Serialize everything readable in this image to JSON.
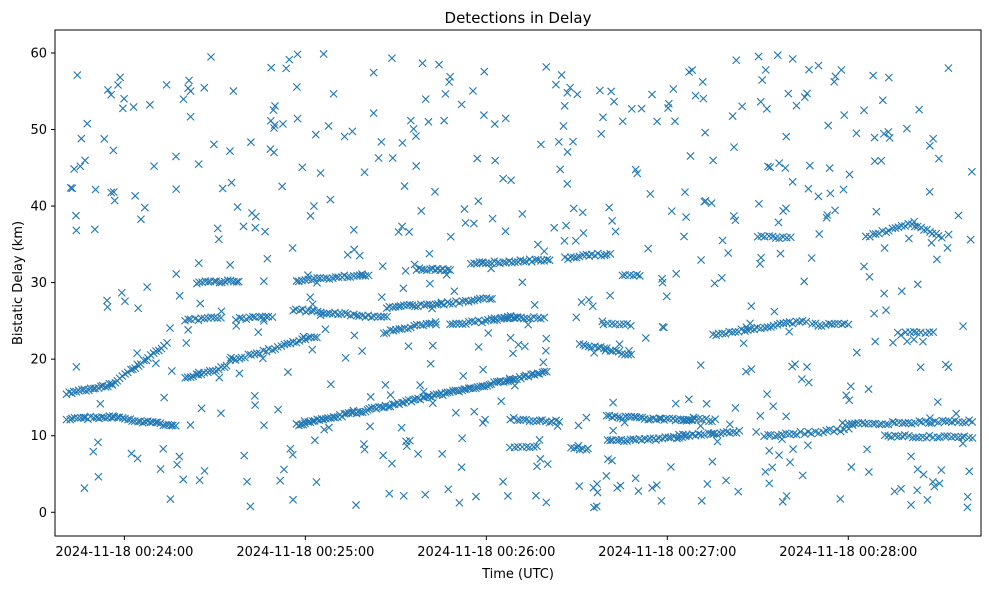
{
  "chart_data": {
    "type": "scatter",
    "title": "Detections in Delay",
    "xlabel": "Time (UTC)",
    "ylabel": "Bistatic Delay (km)",
    "x_unit": "seconds since 2024-11-18 00:23:00",
    "xlim": [
      37,
      344
    ],
    "ylim": [
      -3.1,
      63
    ],
    "xticks": [
      {
        "value": 60,
        "label": "2024-11-18 00:24:00"
      },
      {
        "value": 120,
        "label": "2024-11-18 00:25:00"
      },
      {
        "value": 180,
        "label": "2024-11-18 00:26:00"
      },
      {
        "value": 240,
        "label": "2024-11-18 00:27:00"
      },
      {
        "value": 300,
        "label": "2024-11-18 00:28:00"
      }
    ],
    "yticks": [
      0,
      10,
      20,
      30,
      40,
      50,
      60
    ],
    "marker": "x",
    "color": "#1f77b4",
    "seed": 20241118,
    "tracks": [
      {
        "t_start": 41,
        "t_end": 56,
        "delay_start": 15.5,
        "delay_end": 16.7,
        "n": 20
      },
      {
        "t_start": 56,
        "t_end": 74,
        "delay_start": 16.7,
        "delay_end": 22.0,
        "n": 22
      },
      {
        "t_start": 41,
        "t_end": 56,
        "delay_start": 12.2,
        "delay_end": 12.5,
        "n": 18
      },
      {
        "t_start": 56,
        "t_end": 77,
        "delay_start": 12.4,
        "delay_end": 11.3,
        "n": 26
      },
      {
        "t_start": 80,
        "t_end": 94,
        "delay_start": 17.5,
        "delay_end": 19.0,
        "n": 16
      },
      {
        "t_start": 95,
        "t_end": 124,
        "delay_start": 19.8,
        "delay_end": 23.0,
        "n": 30
      },
      {
        "t_start": 80,
        "t_end": 92,
        "delay_start": 25.0,
        "delay_end": 25.5,
        "n": 12
      },
      {
        "t_start": 84,
        "t_end": 98,
        "delay_start": 30.0,
        "delay_end": 30.2,
        "n": 16
      },
      {
        "t_start": 97,
        "t_end": 109,
        "delay_start": 25.3,
        "delay_end": 25.5,
        "n": 12
      },
      {
        "t_start": 117,
        "t_end": 141,
        "delay_start": 30.3,
        "delay_end": 31.0,
        "n": 25
      },
      {
        "t_start": 116,
        "t_end": 147,
        "delay_start": 26.5,
        "delay_end": 25.4,
        "n": 32
      },
      {
        "t_start": 147,
        "t_end": 165,
        "delay_start": 26.7,
        "delay_end": 27.3,
        "n": 20
      },
      {
        "t_start": 165,
        "t_end": 182,
        "delay_start": 27.2,
        "delay_end": 28.0,
        "n": 18
      },
      {
        "t_start": 146,
        "t_end": 163,
        "delay_start": 23.5,
        "delay_end": 24.8,
        "n": 18
      },
      {
        "t_start": 157,
        "t_end": 168,
        "delay_start": 31.8,
        "delay_end": 31.6,
        "n": 14
      },
      {
        "t_start": 168,
        "t_end": 190,
        "delay_start": 24.5,
        "delay_end": 25.5,
        "n": 22
      },
      {
        "t_start": 175,
        "t_end": 201,
        "delay_start": 32.5,
        "delay_end": 33.0,
        "n": 28
      },
      {
        "t_start": 206,
        "t_end": 221,
        "delay_start": 33.2,
        "delay_end": 33.8,
        "n": 16
      },
      {
        "t_start": 185,
        "t_end": 199,
        "delay_start": 25.5,
        "delay_end": 25.4,
        "n": 14
      },
      {
        "t_start": 211,
        "t_end": 228,
        "delay_start": 22.0,
        "delay_end": 20.6,
        "n": 18
      },
      {
        "t_start": 117,
        "t_end": 200,
        "delay_start": 11.4,
        "delay_end": 18.3,
        "n": 110
      },
      {
        "t_start": 188,
        "t_end": 204,
        "delay_start": 12.2,
        "delay_end": 11.8,
        "n": 16
      },
      {
        "t_start": 188,
        "t_end": 197,
        "delay_start": 8.5,
        "delay_end": 8.5,
        "n": 8
      },
      {
        "t_start": 208,
        "t_end": 213,
        "delay_start": 8.3,
        "delay_end": 8.3,
        "n": 6
      },
      {
        "t_start": 220,
        "t_end": 248,
        "delay_start": 12.5,
        "delay_end": 12.0,
        "n": 32
      },
      {
        "t_start": 220,
        "t_end": 246,
        "delay_start": 9.3,
        "delay_end": 9.8,
        "n": 28
      },
      {
        "t_start": 244,
        "t_end": 264,
        "delay_start": 10.0,
        "delay_end": 10.5,
        "n": 20
      },
      {
        "t_start": 246,
        "t_end": 256,
        "delay_start": 12.2,
        "delay_end": 12.0,
        "n": 10
      },
      {
        "t_start": 225,
        "t_end": 231,
        "delay_start": 31.0,
        "delay_end": 30.9,
        "n": 6
      },
      {
        "t_start": 219,
        "t_end": 228,
        "delay_start": 24.7,
        "delay_end": 24.5,
        "n": 8
      },
      {
        "t_start": 255,
        "t_end": 286,
        "delay_start": 23.2,
        "delay_end": 25.0,
        "n": 30
      },
      {
        "t_start": 270,
        "t_end": 281,
        "delay_start": 36.0,
        "delay_end": 35.8,
        "n": 10
      },
      {
        "t_start": 272,
        "t_end": 300,
        "delay_start": 10.0,
        "delay_end": 10.8,
        "n": 24
      },
      {
        "t_start": 288,
        "t_end": 300,
        "delay_start": 24.5,
        "delay_end": 24.5,
        "n": 12
      },
      {
        "t_start": 298,
        "t_end": 341,
        "delay_start": 11.5,
        "delay_end": 11.9,
        "n": 40
      },
      {
        "t_start": 312,
        "t_end": 341,
        "delay_start": 10.0,
        "delay_end": 9.8,
        "n": 26
      },
      {
        "t_start": 306,
        "t_end": 322,
        "delay_start": 36.0,
        "delay_end": 37.8,
        "n": 16
      },
      {
        "t_start": 322,
        "t_end": 331,
        "delay_start": 37.5,
        "delay_end": 36.0,
        "n": 10
      },
      {
        "t_start": 319,
        "t_end": 328,
        "delay_start": 23.5,
        "delay_end": 23.5,
        "n": 8
      }
    ],
    "clutter": {
      "n": 560,
      "t_range": [
        41,
        341
      ],
      "delay_range": [
        0.5,
        60
      ]
    }
  }
}
